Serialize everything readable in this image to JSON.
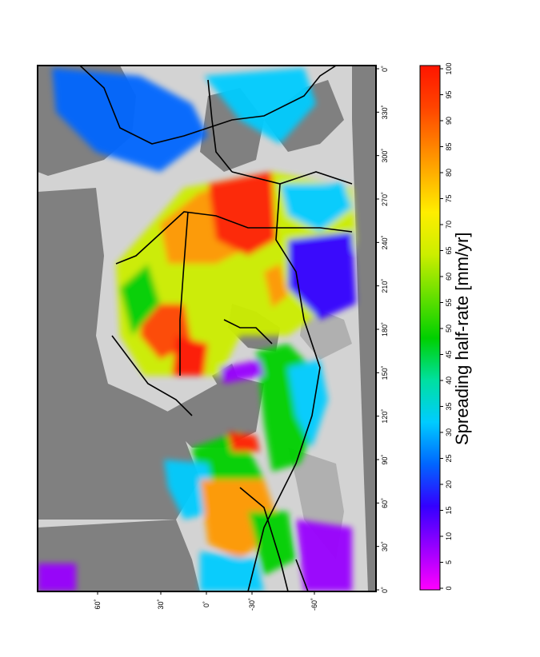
{
  "map": {
    "lon_ticks": [
      "0˚",
      "30˚",
      "60˚",
      "90˚",
      "120˚",
      "150˚",
      "180˚",
      "210˚",
      "240˚",
      "270˚",
      "300˚",
      "330˚",
      "0˚"
    ],
    "lat_ticks": [
      "60˚",
      "30˚",
      "0˚",
      "-30˚",
      "-60˚"
    ],
    "colors": {
      "land": "#808080",
      "shelf": "#d3d3d3",
      "ocean_gap": "#b0b0b0",
      "boundary": "#000000"
    }
  },
  "colorbar": {
    "title": "Spreading half-rate [mm/yr]",
    "ticks": [
      "0",
      "5",
      "10",
      "15",
      "20",
      "25",
      "30",
      "35",
      "40",
      "45",
      "50",
      "55",
      "60",
      "65",
      "70",
      "75",
      "80",
      "85",
      "90",
      "95",
      "100"
    ],
    "stops": [
      "#ff00ff",
      "#9900ff",
      "#3300ff",
      "#0066ff",
      "#00ccff",
      "#00e0a0",
      "#00d000",
      "#66e000",
      "#ccee00",
      "#ffee00",
      "#ff9900",
      "#ff4400",
      "#ff1500"
    ]
  }
}
